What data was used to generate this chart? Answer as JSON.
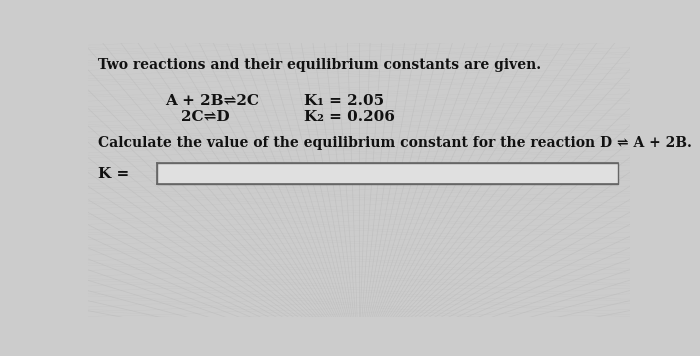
{
  "background_color": "#cccccc",
  "title_text": "Two reactions and their equilibrium constants are given.",
  "reaction1_left": "A + 2B⇌2C",
  "reaction1_right": "K₁ = 2.05",
  "reaction2_left": "2C⇌D",
  "reaction2_right": "K₂ = 0.206",
  "question_text": "Calculate the value of the equilibrium constant for the reaction D ⇌ A + 2B.",
  "answer_label": "K =",
  "text_color": "#111111",
  "box_color": "#e8e8e8",
  "box_edge_color": "#666666",
  "title_fontsize": 10,
  "body_fontsize": 11,
  "question_fontsize": 10
}
